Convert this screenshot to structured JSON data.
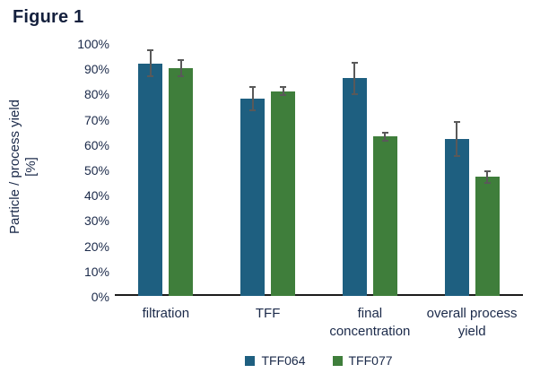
{
  "figure": {
    "title": "Figure 1"
  },
  "chart_data": {
    "type": "bar",
    "title": "Figure 1",
    "categories": [
      "filtration",
      "TFF",
      "final concentration",
      "overall process yield"
    ],
    "category_label_lines": [
      [
        "filtration"
      ],
      [
        "TFF"
      ],
      [
        "final",
        "concentration"
      ],
      [
        "overall process",
        "yield"
      ]
    ],
    "series": [
      {
        "name": "TFF064",
        "color": "#1e5f80",
        "values": [
          92,
          78,
          86,
          62
        ],
        "errors": [
          5.5,
          5,
          6.5,
          7
        ]
      },
      {
        "name": "TFF077",
        "color": "#3f7e3b",
        "values": [
          90,
          81,
          63,
          47
        ],
        "errors": [
          3.5,
          2,
          2,
          2.5
        ]
      }
    ],
    "ylabel_line1": "Particle / process yield",
    "ylabel_line2": "[%]",
    "ytick_labels": [
      "0%",
      "10%",
      "20%",
      "30%",
      "40%",
      "50%",
      "60%",
      "70%",
      "80%",
      "90%",
      "100%"
    ],
    "ylim": [
      0,
      100
    ],
    "ytick_step": 10,
    "grid": false,
    "legend_position": "bottom",
    "colors": {
      "axis_line": "#1c1c1c",
      "error_bar": "#595959",
      "text": "#1b2a4a"
    }
  }
}
